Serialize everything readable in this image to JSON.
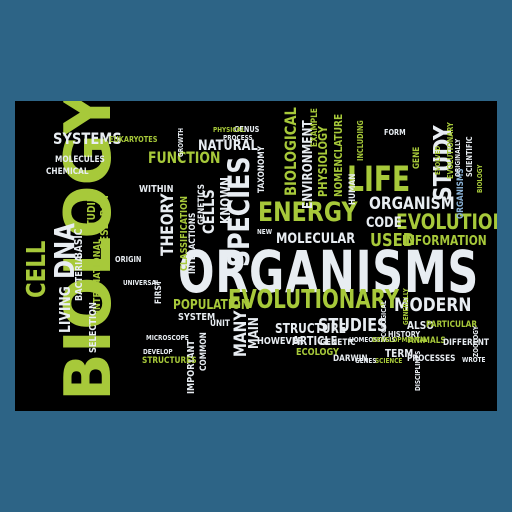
{
  "palette": {
    "background": "#2d6486",
    "cloud": "#000000",
    "green": "#a7c93a",
    "white": "#e8edf2",
    "blue": "#8db6db",
    "light": "#c9d7e4"
  },
  "cloud": {
    "words": [
      {
        "text": "ORGANISMS",
        "color": "#e8edf2"
      },
      {
        "text": "BIOLOGY",
        "color": "#a7c93a"
      },
      {
        "text": "EVOLUTIONARY",
        "color": "#a7c93a"
      },
      {
        "text": "SPECIES",
        "color": "#e8edf2"
      },
      {
        "text": "ENERGY",
        "color": "#a7c93a"
      },
      {
        "text": "EVOLUTION",
        "color": "#a7c93a"
      },
      {
        "text": "LIFE",
        "color": "#a7c93a"
      },
      {
        "text": "ORGANISM",
        "color": "#e8edf2"
      },
      {
        "text": "MODERN",
        "color": "#e8edf2"
      },
      {
        "text": "SYSTEMS",
        "color": "#e8edf2"
      },
      {
        "text": "FUNCTION",
        "color": "#a7c93a"
      },
      {
        "text": "NATURAL",
        "color": "#e8edf2"
      },
      {
        "text": "STUDY",
        "color": "#e8edf2"
      },
      {
        "text": "DNA",
        "color": "#e8edf2"
      },
      {
        "text": "CELL",
        "color": "#a7c93a"
      },
      {
        "text": "STUDIES",
        "color": "#e8edf2"
      },
      {
        "text": "MOLECULAR",
        "color": "#e8edf2"
      },
      {
        "text": "USED",
        "color": "#a7c93a"
      },
      {
        "text": "CODE",
        "color": "#e8edf2"
      },
      {
        "text": "INFORMATION",
        "color": "#a7c93a"
      },
      {
        "text": "POPULATION",
        "color": "#a7c93a"
      },
      {
        "text": "STRUCTURE",
        "color": "#e8edf2"
      },
      {
        "text": "THEORY",
        "color": "#e8edf2"
      },
      {
        "text": "CELLS",
        "color": "#e8edf2"
      },
      {
        "text": "KNOWN",
        "color": "#e8edf2"
      },
      {
        "text": "BIOLOGICAL",
        "color": "#a7c93a"
      },
      {
        "text": "ENVIRONMENT",
        "color": "#e8edf2"
      },
      {
        "text": "PHYSIOLOGY",
        "color": "#a7c93a"
      },
      {
        "text": "NOMENCLATURE",
        "color": "#a7c93a"
      },
      {
        "text": "MANY",
        "color": "#e8edf2"
      },
      {
        "text": "MAIN",
        "color": "#e8edf2"
      },
      {
        "text": "ARTICLE",
        "color": "#e8edf2"
      },
      {
        "text": "ALSO",
        "color": "#e8edf2"
      },
      {
        "text": "TERM",
        "color": "#e8edf2"
      },
      {
        "text": "LIVING",
        "color": "#e8edf2"
      },
      {
        "text": "BASIC",
        "color": "#e8edf2"
      },
      {
        "text": "STUDIED",
        "color": "#a7c93a"
      },
      {
        "text": "BACTERIA",
        "color": "#e8edf2"
      },
      {
        "text": "RESEARCH",
        "color": "#a7c93a"
      },
      {
        "text": "INTERNATIONAL",
        "color": "#a7c93a"
      },
      {
        "text": "SELECTION",
        "color": "#e8edf2"
      },
      {
        "text": "MOLECULES",
        "color": "#e8edf2"
      },
      {
        "text": "CHEMICAL",
        "color": "#e8edf2"
      },
      {
        "text": "WITHIN",
        "color": "#e8edf2"
      },
      {
        "text": "CLASSIFICATION",
        "color": "#a7c93a"
      },
      {
        "text": "INTERACTIONS",
        "color": "#e8edf2"
      },
      {
        "text": "GENETICS",
        "color": "#e8edf2"
      },
      {
        "text": "TAXONOMY",
        "color": "#e8edf2"
      },
      {
        "text": "HOWEVER",
        "color": "#e8edf2"
      },
      {
        "text": "ECOLOGY",
        "color": "#a7c93a"
      },
      {
        "text": "SYSTEM",
        "color": "#e8edf2"
      },
      {
        "text": "UNIT",
        "color": "#e8edf2"
      },
      {
        "text": "GENETIC",
        "color": "#e8edf2"
      },
      {
        "text": "DARWIN",
        "color": "#e8edf2"
      },
      {
        "text": "PROCESSES",
        "color": "#e8edf2"
      },
      {
        "text": "ANIMALS",
        "color": "#a7c93a"
      },
      {
        "text": "DIFFERENT",
        "color": "#e8edf2"
      },
      {
        "text": "PARTICULAR",
        "color": "#a7c93a"
      },
      {
        "text": "FIRST",
        "color": "#e8edf2"
      },
      {
        "text": "IMPORTANT",
        "color": "#e8edf2"
      },
      {
        "text": "COMMON",
        "color": "#e8edf2"
      },
      {
        "text": "STRUCTURES",
        "color": "#a7c93a"
      },
      {
        "text": "GENUS",
        "color": "#e8edf2"
      },
      {
        "text": "EXAMPLE",
        "color": "#a7c93a"
      },
      {
        "text": "HUMAN",
        "color": "#e8edf2"
      },
      {
        "text": "INCLUDING",
        "color": "#a7c93a"
      },
      {
        "text": "FORM",
        "color": "#e8edf2"
      },
      {
        "text": "GENE",
        "color": "#a7c93a"
      },
      {
        "text": "EVOLUTIONARY",
        "color": "#a7c93a"
      },
      {
        "text": "ORGANISMS",
        "color": "#8db6db"
      },
      {
        "text": "SCIENTIFIC",
        "color": "#e8edf2"
      },
      {
        "text": "HISTORY",
        "color": "#e8edf2"
      },
      {
        "text": "ORIGIN",
        "color": "#e8edf2"
      },
      {
        "text": "PHYSICAL",
        "color": "#a7c93a"
      },
      {
        "text": "PROCESS",
        "color": "#e8edf2"
      },
      {
        "text": "EUKARYOTES",
        "color": "#a7c93a"
      },
      {
        "text": "HOMEOSTASIS",
        "color": "#e8edf2"
      },
      {
        "text": "ECOLOGICAL",
        "color": "#e8edf2"
      },
      {
        "text": "MICROSCOPE",
        "color": "#e8edf2"
      },
      {
        "text": "DEVELOPMENTAL",
        "color": "#a7c93a"
      },
      {
        "text": "WROTE",
        "color": "#e8edf2"
      },
      {
        "text": "GENERALLY",
        "color": "#a7c93a"
      },
      {
        "text": "ZOOLOGY",
        "color": "#e8edf2"
      },
      {
        "text": "UNIVERSAL",
        "color": "#e8edf2"
      },
      {
        "text": "GROWTH",
        "color": "#e8edf2"
      },
      {
        "text": "NEW",
        "color": "#e8edf2"
      },
      {
        "text": "DEVELOP",
        "color": "#e8edf2"
      },
      {
        "text": "SCIENCE",
        "color": "#a7c93a"
      },
      {
        "text": "GENES",
        "color": "#e8edf2"
      },
      {
        "text": "DISCIPLINES",
        "color": "#e8edf2"
      },
      {
        "text": "BIOLOGY",
        "color": "#a7c93a"
      },
      {
        "text": "ORIGINALLY",
        "color": "#e8edf2"
      },
      {
        "text": "EVOLVED",
        "color": "#a7c93a"
      }
    ]
  }
}
